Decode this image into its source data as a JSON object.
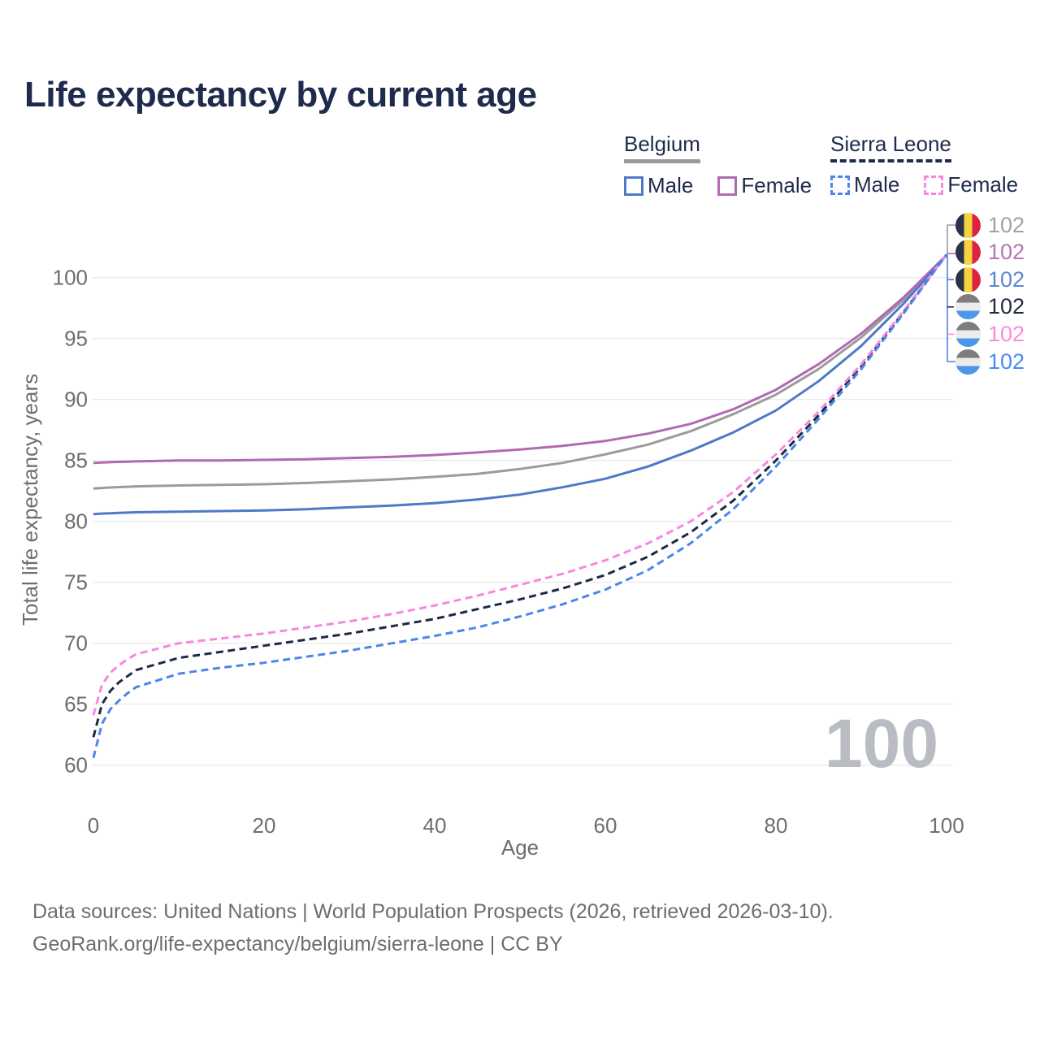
{
  "title": "Life expectancy by current age",
  "legend": {
    "groups": [
      {
        "name": "Belgium",
        "line_style": "solid",
        "underline_color": "#9b9b9b",
        "items": [
          {
            "label": "Male",
            "color": "#4e79c8",
            "dashed": false,
            "checked": false
          },
          {
            "label": "Female",
            "color": "#b06ab0",
            "dashed": false,
            "checked": false
          }
        ]
      },
      {
        "name": "Sierra Leone",
        "line_style": "dashed",
        "underline_color": "#1e2b4c",
        "items": [
          {
            "label": "Male",
            "color": "#4b86e8",
            "dashed": true,
            "checked": false
          },
          {
            "label": "Female",
            "color": "#f787e2",
            "dashed": true,
            "checked": false
          }
        ]
      }
    ]
  },
  "chart_data": {
    "type": "line",
    "title": "Life expectancy by current age",
    "xlabel": "Age",
    "ylabel": "Total life expectancy, years",
    "xlim": [
      0,
      100
    ],
    "ylim": [
      60,
      103
    ],
    "x_ticks": [
      0,
      20,
      40,
      60,
      80,
      100
    ],
    "y_ticks": [
      60,
      65,
      70,
      75,
      80,
      85,
      90,
      95,
      100
    ],
    "grid": true,
    "watermark": "100",
    "legend_position": "top-right",
    "x": [
      0,
      1,
      2,
      3,
      4,
      5,
      10,
      15,
      20,
      25,
      30,
      35,
      40,
      45,
      50,
      55,
      60,
      65,
      70,
      75,
      80,
      85,
      90,
      95,
      100
    ],
    "series": [
      {
        "name": "Belgium Total",
        "country": "belgium",
        "color": "#9b9b9b",
        "dashed": false,
        "values": [
          82.7,
          82.74,
          82.78,
          82.81,
          82.84,
          82.87,
          82.95,
          83.0,
          83.05,
          83.15,
          83.3,
          83.45,
          83.65,
          83.9,
          84.3,
          84.8,
          85.5,
          86.3,
          87.4,
          88.8,
          90.4,
          92.5,
          95.1,
          98.2,
          101.85
        ]
      },
      {
        "name": "Belgium Female",
        "country": "belgium",
        "color": "#b06ab0",
        "dashed": false,
        "values": [
          84.8,
          84.83,
          84.86,
          84.88,
          84.9,
          84.92,
          85.0,
          85.0,
          85.05,
          85.1,
          85.2,
          85.3,
          85.45,
          85.65,
          85.9,
          86.2,
          86.6,
          87.2,
          88.0,
          89.2,
          90.8,
          92.9,
          95.4,
          98.4,
          101.85
        ]
      },
      {
        "name": "Belgium Male",
        "country": "belgium",
        "color": "#4e79c8",
        "dashed": false,
        "values": [
          80.6,
          80.64,
          80.67,
          80.7,
          80.72,
          80.75,
          80.8,
          80.85,
          80.9,
          81.0,
          81.15,
          81.3,
          81.5,
          81.8,
          82.2,
          82.8,
          83.5,
          84.5,
          85.8,
          87.3,
          89.1,
          91.5,
          94.4,
          97.9,
          101.85
        ]
      },
      {
        "name": "Sierra Leone Total",
        "country": "sierra-leone",
        "color": "#1b2a44",
        "dashed": true,
        "values": [
          62.3,
          65.0,
          66.1,
          66.8,
          67.3,
          67.8,
          68.8,
          69.3,
          69.8,
          70.3,
          70.8,
          71.4,
          72.0,
          72.8,
          73.6,
          74.5,
          75.6,
          77.1,
          79.1,
          81.7,
          85.0,
          88.7,
          92.7,
          97.2,
          101.9
        ]
      },
      {
        "name": "Sierra Leone Female",
        "country": "sierra-leone",
        "color": "#f787e2",
        "dashed": true,
        "values": [
          64.1,
          66.6,
          67.6,
          68.2,
          68.7,
          69.1,
          70.0,
          70.4,
          70.8,
          71.3,
          71.8,
          72.4,
          73.1,
          73.9,
          74.8,
          75.7,
          76.8,
          78.2,
          80.0,
          82.4,
          85.5,
          89.0,
          92.9,
          97.3,
          101.9
        ]
      },
      {
        "name": "Sierra Leone Male",
        "country": "sierra-leone",
        "color": "#4b86e8",
        "dashed": true,
        "values": [
          60.6,
          63.4,
          64.6,
          65.3,
          65.9,
          66.4,
          67.5,
          68.0,
          68.4,
          68.9,
          69.4,
          70.0,
          70.6,
          71.3,
          72.2,
          73.2,
          74.4,
          76.0,
          78.2,
          81.0,
          84.5,
          88.4,
          92.5,
          97.1,
          101.9
        ]
      }
    ],
    "end_labels": [
      {
        "flag": "belgium",
        "value": "102",
        "color": "#a2a2a2",
        "series": "Belgium Total"
      },
      {
        "flag": "belgium",
        "value": "102",
        "color": "#b476b4",
        "series": "Belgium Female"
      },
      {
        "flag": "belgium",
        "value": "102",
        "color": "#5b86d0",
        "series": "Belgium Male"
      },
      {
        "flag": "sierra-leone",
        "value": "102",
        "color": "#232d3f",
        "series": "Sierra Leone Total"
      },
      {
        "flag": "sierra-leone",
        "value": "102",
        "color": "#fb8ae0",
        "series": "Sierra Leone Female"
      },
      {
        "flag": "sierra-leone",
        "value": "102",
        "color": "#4a8cf0",
        "series": "Sierra Leone Male"
      }
    ],
    "flag_colors": {
      "belgium": [
        "#2a3347",
        "#f5d33f",
        "#dd2341"
      ],
      "sierra-leone": [
        "#7d7d7d",
        "#ececec",
        "#4e96ea"
      ]
    },
    "colors": {
      "grid": "#ebebee",
      "axis_text": "#6e6e6e",
      "watermark": "#b9bdc3",
      "title_text": "#1e2b4c"
    }
  },
  "footer": {
    "line1": "Data sources: United Nations | World Population Prospects (2026, retrieved 2026-03-10).",
    "line2": "GeoRank.org/life-expectancy/belgium/sierra-leone | CC BY"
  }
}
